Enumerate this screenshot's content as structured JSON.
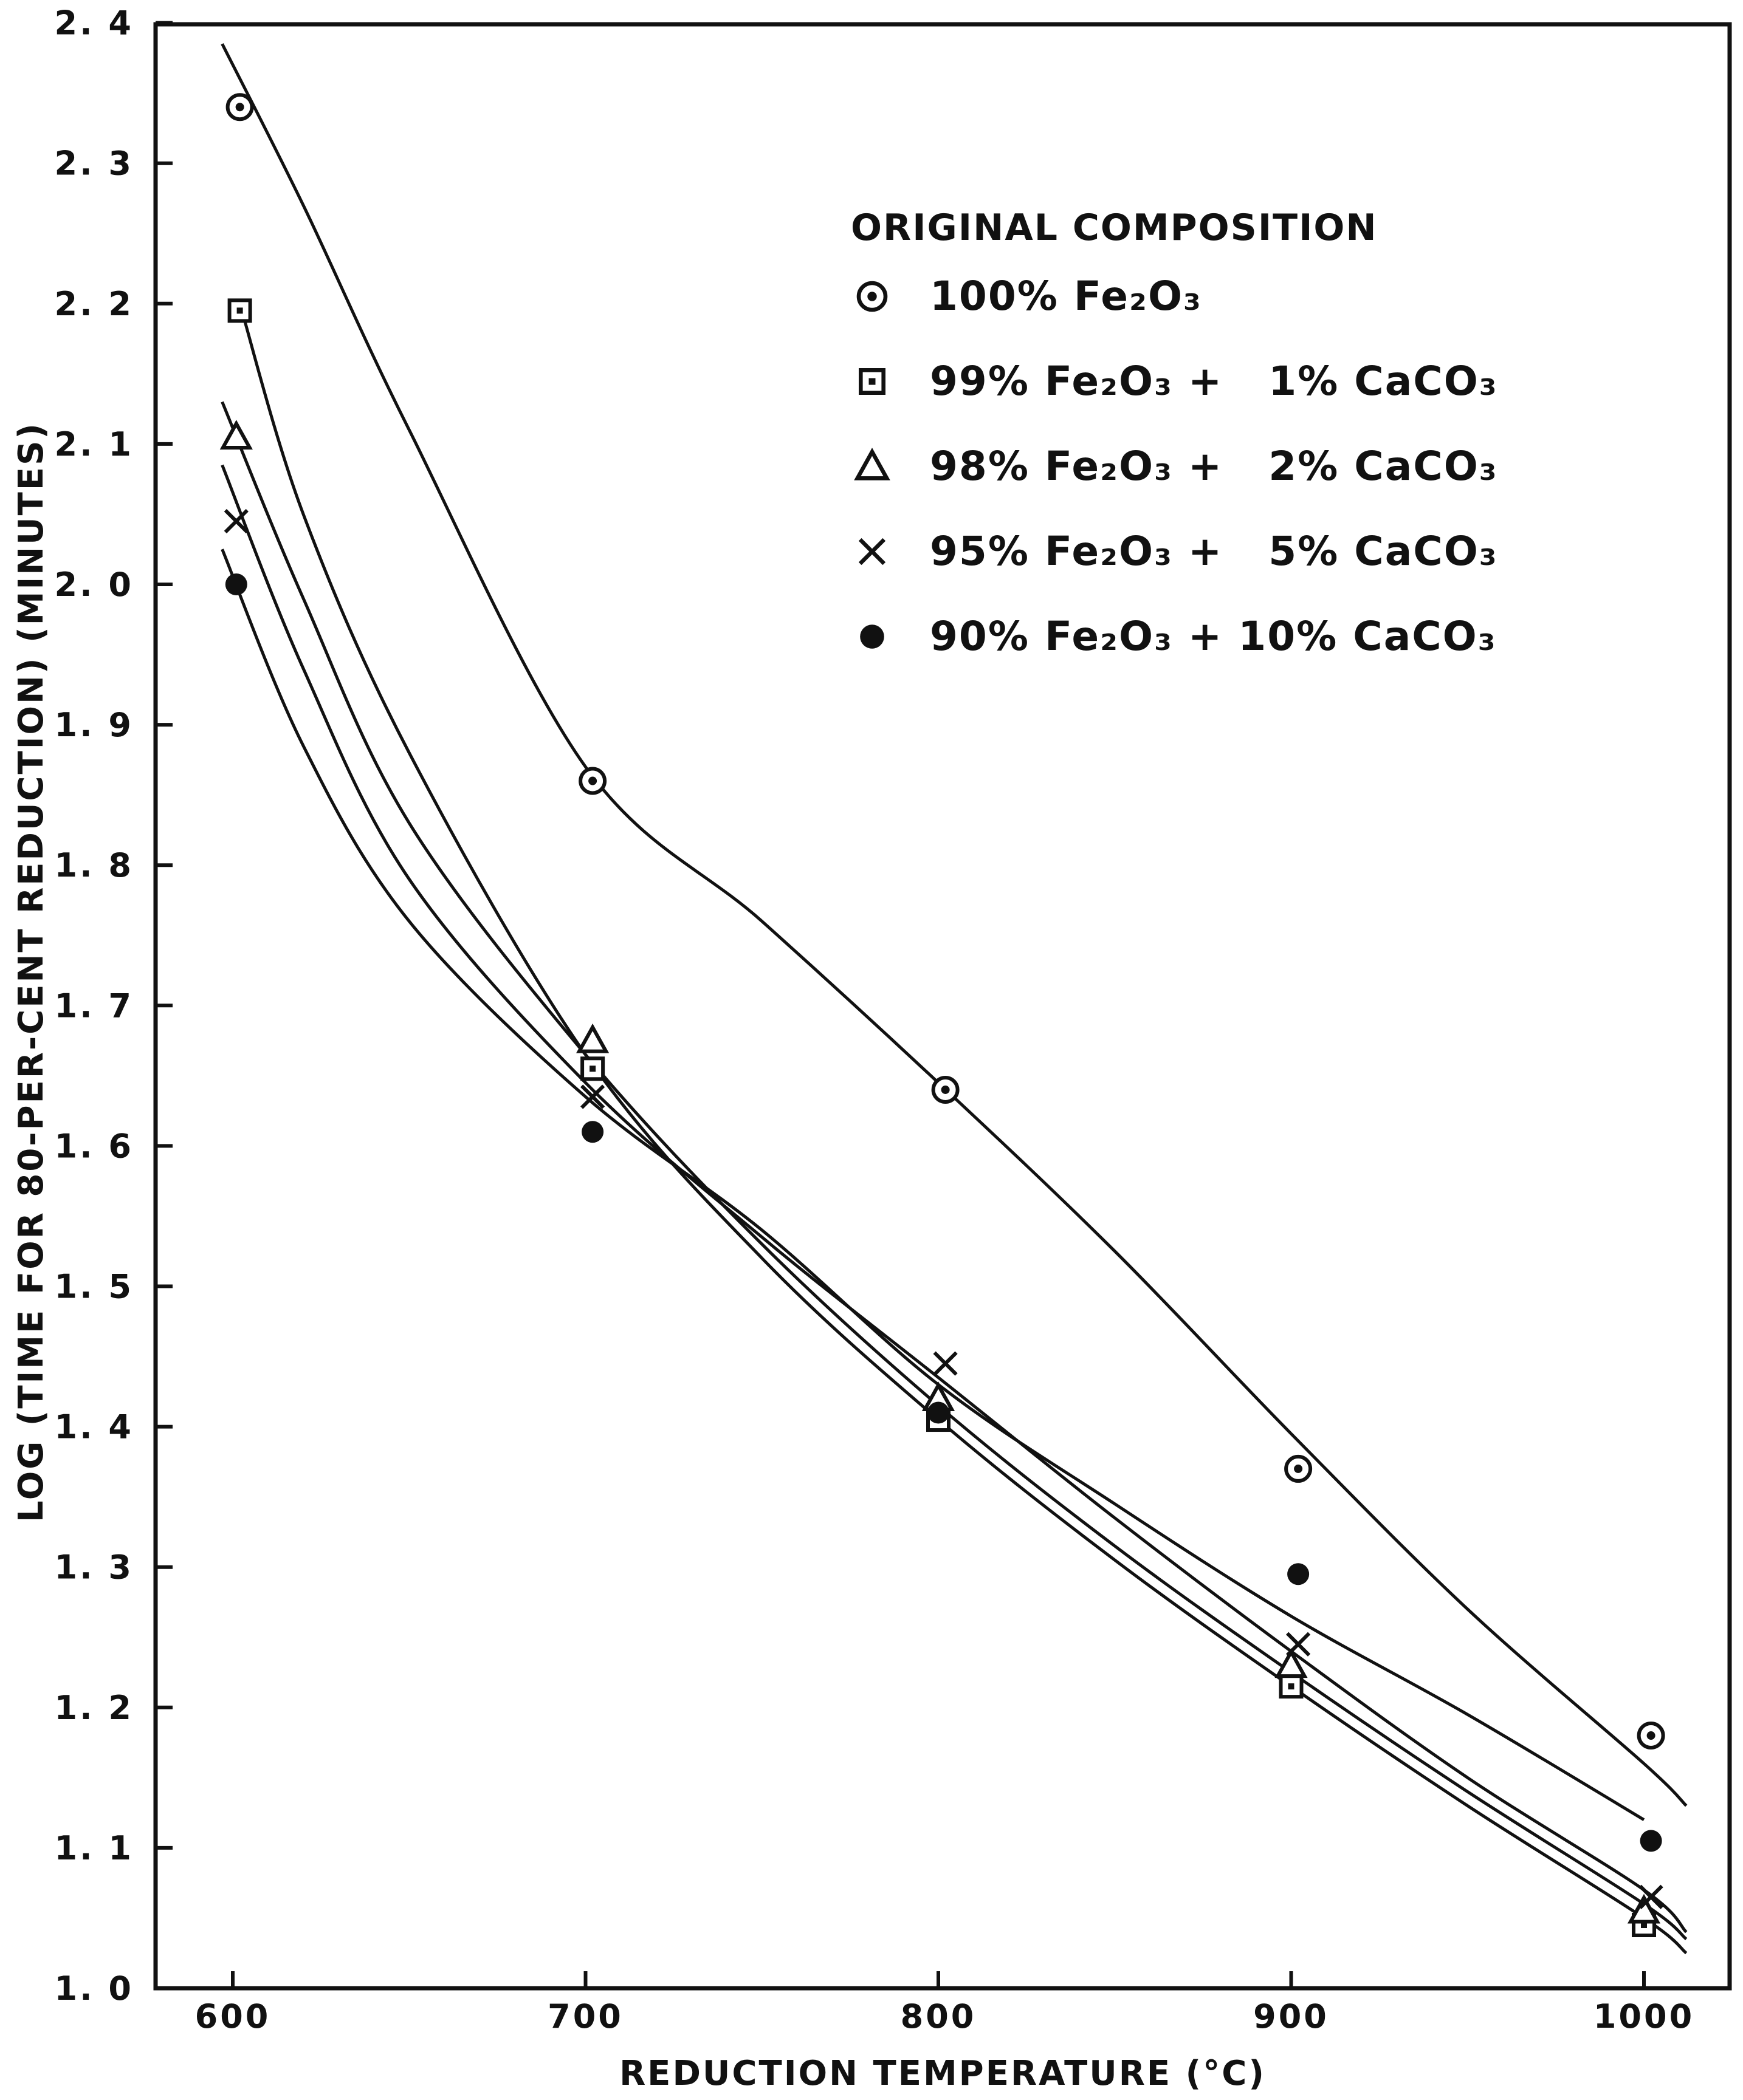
{
  "chart_data": {
    "type": "scatter",
    "title": "",
    "xlabel": "REDUCTION TEMPERATURE (°C)",
    "ylabel": "LOG (TIME FOR 80-PER-CENT REDUCTION) (MINUTES)",
    "xlim": [
      580,
      1020
    ],
    "ylim": [
      1.0,
      2.4
    ],
    "xticks": [
      600,
      700,
      800,
      900,
      1000
    ],
    "xtick_labels": [
      "600",
      "700",
      "800",
      "900",
      "1000"
    ],
    "yticks": [
      1.0,
      1.1,
      1.2,
      1.3,
      1.4,
      1.5,
      1.6,
      1.7,
      1.8,
      1.9,
      2.0,
      2.1,
      2.2,
      2.3,
      2.4
    ],
    "ytick_labels": [
      "1. 0",
      "1. 1",
      "1. 2",
      "1. 3",
      "1. 4",
      "1. 5",
      "1. 6",
      "1. 7",
      "1. 8",
      "1. 9",
      "2. 0",
      "2. 1",
      "2. 2",
      "2. 3",
      "2. 4"
    ],
    "grid": false,
    "legend_title": "ORIGINAL COMPOSITION",
    "legend_position": "top-right",
    "series": [
      {
        "name": "100% Fe₂O₃",
        "marker": "circle-dot",
        "points": [
          [
            602,
            2.34
          ],
          [
            702,
            1.86
          ],
          [
            802,
            1.64
          ],
          [
            902,
            1.37
          ],
          [
            1002,
            1.18
          ]
        ],
        "curve": [
          [
            597,
            2.385
          ],
          [
            620,
            2.27
          ],
          [
            650,
            2.11
          ],
          [
            700,
            1.87
          ],
          [
            750,
            1.76
          ],
          [
            800,
            1.645
          ],
          [
            850,
            1.525
          ],
          [
            900,
            1.395
          ],
          [
            950,
            1.27
          ],
          [
            1000,
            1.16
          ],
          [
            1012,
            1.13
          ]
        ]
      },
      {
        "name": "99% Fe₂O₃ +   1% CaCO₃",
        "marker": "square-dot",
        "points": [
          [
            602,
            2.195
          ],
          [
            702,
            1.655
          ],
          [
            800,
            1.405
          ],
          [
            900,
            1.215
          ],
          [
            1000,
            1.045
          ]
        ],
        "curve": [
          [
            602,
            2.2
          ],
          [
            620,
            2.05
          ],
          [
            650,
            1.88
          ],
          [
            700,
            1.665
          ],
          [
            750,
            1.52
          ],
          [
            800,
            1.405
          ],
          [
            850,
            1.305
          ],
          [
            900,
            1.215
          ],
          [
            950,
            1.13
          ],
          [
            1000,
            1.05
          ],
          [
            1012,
            1.025
          ]
        ]
      },
      {
        "name": "98% Fe₂O₃ +   2% CaCO₃",
        "marker": "triangle",
        "points": [
          [
            601,
            2.105
          ],
          [
            702,
            1.675
          ],
          [
            800,
            1.42
          ],
          [
            900,
            1.23
          ],
          [
            1000,
            1.055
          ]
        ],
        "curve": [
          [
            597,
            2.13
          ],
          [
            620,
            1.99
          ],
          [
            650,
            1.83
          ],
          [
            700,
            1.665
          ],
          [
            750,
            1.53
          ],
          [
            800,
            1.415
          ],
          [
            850,
            1.315
          ],
          [
            900,
            1.225
          ],
          [
            950,
            1.14
          ],
          [
            1000,
            1.06
          ],
          [
            1012,
            1.035
          ]
        ]
      },
      {
        "name": "95% Fe₂O₃ +   5% CaCO₃",
        "marker": "cross",
        "points": [
          [
            601,
            2.045
          ],
          [
            702,
            1.635
          ],
          [
            802,
            1.445
          ],
          [
            902,
            1.245
          ],
          [
            1002,
            1.065
          ]
        ],
        "curve": [
          [
            597,
            2.085
          ],
          [
            620,
            1.94
          ],
          [
            650,
            1.79
          ],
          [
            700,
            1.645
          ],
          [
            750,
            1.535
          ],
          [
            800,
            1.435
          ],
          [
            850,
            1.335
          ],
          [
            900,
            1.24
          ],
          [
            950,
            1.15
          ],
          [
            1000,
            1.07
          ],
          [
            1012,
            1.04
          ]
        ]
      },
      {
        "name": "90% Fe₂O₃ + 10% CaCO₃",
        "marker": "filled-circle",
        "points": [
          [
            601,
            2.0
          ],
          [
            702,
            1.61
          ],
          [
            800,
            1.41
          ],
          [
            902,
            1.295
          ],
          [
            1002,
            1.105
          ]
        ],
        "curve": [
          [
            597,
            2.025
          ],
          [
            620,
            1.885
          ],
          [
            650,
            1.76
          ],
          [
            700,
            1.635
          ],
          [
            750,
            1.54
          ],
          [
            800,
            1.43
          ],
          [
            850,
            1.345
          ],
          [
            900,
            1.265
          ],
          [
            950,
            1.195
          ],
          [
            1000,
            1.12
          ]
        ]
      }
    ]
  }
}
